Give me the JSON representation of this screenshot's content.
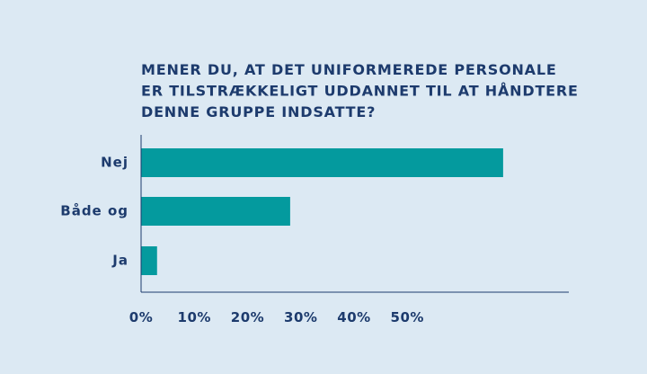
{
  "chart_data": {
    "type": "bar",
    "orientation": "horizontal",
    "title": [
      "MENER DU, AT DET UNIFORMEREDE PERSONALE",
      "ER TILSTRÆKKELIGT UDDANNET TIL AT HÅNDTERE",
      "DENNE GRUPPE INDSATTE?"
    ],
    "categories": [
      "Nej",
      "Både og",
      "Ja"
    ],
    "values": [
      68,
      28,
      3
    ],
    "color": "#049a9e",
    "xlim": [
      0,
      80
    ],
    "xticks": [
      {
        "value": 0,
        "label": "0%"
      },
      {
        "value": 10,
        "label": "10%"
      },
      {
        "value": 20,
        "label": "20%"
      },
      {
        "value": 30,
        "label": "30%"
      },
      {
        "value": 40,
        "label": "40%"
      },
      {
        "value": 50,
        "label": "50%"
      }
    ],
    "grid": false
  }
}
